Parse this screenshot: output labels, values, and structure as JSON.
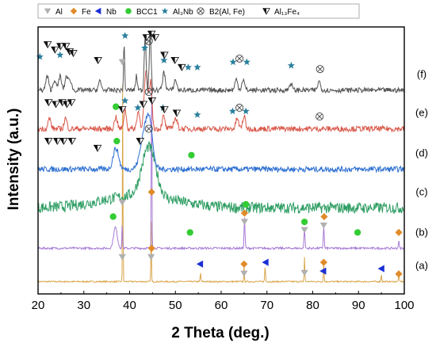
{
  "chart_data": {
    "type": "line",
    "xlabel": "2 Theta (deg.)",
    "ylabel": "Intensity (a.u.)",
    "xlim": [
      20,
      100
    ],
    "x_ticks": [
      20,
      30,
      40,
      50,
      60,
      70,
      80,
      90,
      100
    ],
    "y_ticks": "none",
    "grid": false,
    "legend": {
      "placement": "top",
      "entries": [
        {
          "marker": "gray-down-triangle",
          "label": "Al"
        },
        {
          "marker": "orange-diamond",
          "label": "Fe"
        },
        {
          "marker": "blue-left-triangle",
          "label": "Nb"
        },
        {
          "marker": "green-circle",
          "label": "BCC1"
        },
        {
          "marker": "teal-star",
          "label": "Al₃Nb"
        },
        {
          "marker": "circled-x",
          "label": "B2(Al, Fe)"
        },
        {
          "marker": "black-half-triangle",
          "label": "Al₁₃Fe₄"
        }
      ]
    },
    "colors": {
      "a": "#d9a54a",
      "b": "#a77bd6",
      "c": "#2f9e64",
      "d": "#2c6fd1",
      "e": "#d9584a",
      "f": "#555555",
      "al": "#b0b0b0",
      "fe": "#e08b2a",
      "nb": "#1b2fd6",
      "bcc1": "#33cc33",
      "al3nb": "#2a7f9e",
      "b2": "#444444",
      "al13fe4": "#111111"
    },
    "series": [
      {
        "name": "(a)",
        "baseline": 0.35,
        "noise": 0.02,
        "peaks": [
          [
            38.5,
            0.055,
            6.0
          ],
          [
            44.7,
            0.06,
            1.8
          ],
          [
            55.5,
            0.08,
            0.25
          ],
          [
            65.0,
            0.06,
            0.5
          ],
          [
            69.6,
            0.08,
            0.45
          ],
          [
            78.2,
            0.07,
            0.7
          ],
          [
            82.4,
            0.07,
            0.6
          ],
          [
            95.0,
            0.08,
            0.2
          ],
          [
            98.8,
            0.08,
            0.2
          ]
        ]
      },
      {
        "name": "(b)",
        "baseline": 1.3,
        "noise": 0.03,
        "peaks": [
          [
            36.9,
            0.4,
            0.6
          ],
          [
            38.4,
            0.08,
            0.7
          ],
          [
            44.8,
            0.07,
            5.4
          ],
          [
            65.1,
            0.1,
            0.9
          ],
          [
            78.2,
            0.1,
            0.6
          ],
          [
            82.4,
            0.1,
            0.65
          ],
          [
            98.8,
            0.1,
            0.2
          ]
        ]
      },
      {
        "name": "(c)",
        "baseline": 2.45,
        "noise": 0.16,
        "peaks": [
          [
            42.0,
            8.0,
            0.35
          ],
          [
            44.2,
            1.5,
            1.4
          ]
        ]
      },
      {
        "name": "(d)",
        "baseline": 3.55,
        "noise": 0.08,
        "peaks": [
          [
            37.0,
            0.6,
            0.6
          ],
          [
            43.6,
            1.0,
            1.3
          ],
          [
            44.5,
            0.5,
            0.6
          ]
        ]
      },
      {
        "name": "(e)",
        "baseline": 4.7,
        "noise": 0.08,
        "peaks": [
          [
            22.5,
            0.3,
            0.3
          ],
          [
            26.0,
            0.3,
            0.3
          ],
          [
            37.0,
            0.3,
            0.35
          ],
          [
            39.0,
            0.25,
            0.6
          ],
          [
            41.9,
            0.3,
            0.5
          ],
          [
            43.6,
            0.4,
            1.6
          ],
          [
            44.6,
            0.3,
            1.3
          ],
          [
            47.4,
            0.3,
            0.35
          ],
          [
            50.0,
            0.4,
            0.3
          ],
          [
            63.5,
            0.3,
            0.3
          ],
          [
            65.0,
            0.3,
            0.35
          ]
        ]
      },
      {
        "name": "(f)",
        "baseline": 5.8,
        "noise": 0.07,
        "peaks": [
          [
            22.0,
            0.3,
            0.4
          ],
          [
            23.6,
            0.3,
            0.3
          ],
          [
            24.8,
            0.3,
            0.4
          ],
          [
            26.2,
            0.3,
            0.4
          ],
          [
            27.0,
            0.3,
            0.3
          ],
          [
            33.5,
            0.3,
            0.25
          ],
          [
            38.8,
            0.12,
            1.3
          ],
          [
            41.5,
            0.2,
            0.4
          ],
          [
            43.4,
            0.2,
            1.6
          ],
          [
            44.5,
            0.2,
            1.6
          ],
          [
            47.5,
            0.3,
            0.5
          ],
          [
            50.0,
            0.3,
            0.3
          ],
          [
            63.3,
            0.3,
            0.3
          ],
          [
            64.8,
            0.3,
            0.3
          ],
          [
            75.2,
            0.3,
            0.2
          ],
          [
            81.4,
            0.3,
            0.25
          ]
        ]
      }
    ],
    "markers": [
      {
        "s": "a",
        "p": "al",
        "x": 38.4,
        "y": 1.05
      },
      {
        "s": "a",
        "p": "fe",
        "x": 44.8,
        "y": 1.3
      },
      {
        "s": "a",
        "p": "al",
        "x": 44.7,
        "y": 1.05
      },
      {
        "s": "a",
        "p": "nb",
        "x": 55.4,
        "y": 0.85
      },
      {
        "s": "a",
        "p": "fe",
        "x": 65.0,
        "y": 0.85
      },
      {
        "s": "a",
        "p": "al",
        "x": 65.0,
        "y": 0.58
      },
      {
        "s": "a",
        "p": "nb",
        "x": 69.7,
        "y": 0.9
      },
      {
        "s": "a",
        "p": "al",
        "x": 78.2,
        "y": 0.6
      },
      {
        "s": "a",
        "p": "fe",
        "x": 82.4,
        "y": 0.9
      },
      {
        "s": "a",
        "p": "nb",
        "x": 82.3,
        "y": 0.65
      },
      {
        "s": "a",
        "p": "nb",
        "x": 95.0,
        "y": 0.72
      },
      {
        "s": "a",
        "p": "fe",
        "x": 98.8,
        "y": 0.57
      },
      {
        "s": "b",
        "p": "fe",
        "x": 44.8,
        "y": 2.9
      },
      {
        "s": "b",
        "p": "al",
        "x": 38.4,
        "y": 2.6
      },
      {
        "s": "b",
        "p": "bcc1",
        "x": 36.4,
        "y": 2.2
      },
      {
        "s": "b",
        "p": "bcc1",
        "x": 53.2,
        "y": 1.75
      },
      {
        "s": "b",
        "p": "bcc1",
        "x": 65.4,
        "y": 2.55
      },
      {
        "s": "b",
        "p": "fe",
        "x": 65.1,
        "y": 2.3
      },
      {
        "s": "b",
        "p": "al",
        "x": 65.1,
        "y": 2.05
      },
      {
        "s": "b",
        "p": "bcc1",
        "x": 78.2,
        "y": 2.05
      },
      {
        "s": "b",
        "p": "al",
        "x": 78.2,
        "y": 1.82
      },
      {
        "s": "b",
        "p": "fe",
        "x": 82.5,
        "y": 2.2
      },
      {
        "s": "b",
        "p": "al",
        "x": 82.4,
        "y": 1.95
      },
      {
        "s": "b",
        "p": "bcc1",
        "x": 89.8,
        "y": 1.75
      },
      {
        "s": "b",
        "p": "fe",
        "x": 98.8,
        "y": 1.75
      },
      {
        "s": "d",
        "p": "bcc1",
        "x": 37.2,
        "y": 4.35
      },
      {
        "s": "d",
        "p": "b2",
        "x": 44.2,
        "y": 4.7
      },
      {
        "s": "d",
        "p": "bcc1",
        "x": 53.5,
        "y": 3.95
      },
      {
        "s": "d",
        "p": "al13fe4",
        "x": 22.3,
        "y": 4.35
      },
      {
        "s": "d",
        "p": "al13fe4",
        "x": 24.2,
        "y": 4.35
      },
      {
        "s": "d",
        "p": "al13fe4",
        "x": 25.6,
        "y": 4.35
      },
      {
        "s": "d",
        "p": "al13fe4",
        "x": 27.4,
        "y": 4.35
      },
      {
        "s": "d",
        "p": "al13fe4",
        "x": 33.0,
        "y": 4.15
      },
      {
        "s": "d",
        "p": "al13fe4",
        "x": 42.3,
        "y": 4.35
      },
      {
        "s": "e",
        "p": "b2",
        "x": 44.2,
        "y": 5.75
      },
      {
        "s": "e",
        "p": "al3nb",
        "x": 39.0,
        "y": 5.5
      },
      {
        "s": "e",
        "p": "bcc1",
        "x": 37.0,
        "y": 5.33
      },
      {
        "s": "e",
        "p": "al3nb",
        "x": 41.8,
        "y": 5.3
      },
      {
        "s": "e",
        "p": "al3nb",
        "x": 47.3,
        "y": 5.3
      },
      {
        "s": "e",
        "p": "al3nb",
        "x": 54.8,
        "y": 5.1
      },
      {
        "s": "e",
        "p": "al3nb",
        "x": 62.5,
        "y": 5.2
      },
      {
        "s": "e",
        "p": "b2",
        "x": 64.0,
        "y": 5.3
      },
      {
        "s": "e",
        "p": "al3nb",
        "x": 65.4,
        "y": 5.2
      },
      {
        "s": "e",
        "p": "b2",
        "x": 81.5,
        "y": 5.05
      },
      {
        "s": "e",
        "p": "al13fe4",
        "x": 22.3,
        "y": 5.45
      },
      {
        "s": "e",
        "p": "al13fe4",
        "x": 23.9,
        "y": 5.4
      },
      {
        "s": "e",
        "p": "al13fe4",
        "x": 25.3,
        "y": 5.45
      },
      {
        "s": "e",
        "p": "al13fe4",
        "x": 26.3,
        "y": 5.4
      },
      {
        "s": "e",
        "p": "al13fe4",
        "x": 27.3,
        "y": 5.45
      },
      {
        "s": "e",
        "p": "al13fe4",
        "x": 38.4,
        "y": 5.25
      },
      {
        "s": "e",
        "p": "al13fe4",
        "x": 43.0,
        "y": 5.4
      },
      {
        "s": "e",
        "p": "al13fe4",
        "x": 44.9,
        "y": 5.5
      },
      {
        "s": "e",
        "p": "al13fe4",
        "x": 47.6,
        "y": 5.25
      },
      {
        "s": "e",
        "p": "al13fe4",
        "x": 50.3,
        "y": 5.15
      },
      {
        "s": "f",
        "p": "al3nb",
        "x": 39.0,
        "y": 7.35
      },
      {
        "s": "f",
        "p": "al3nb",
        "x": 20.4,
        "y": 6.75
      },
      {
        "s": "f",
        "p": "al3nb",
        "x": 24.8,
        "y": 6.8
      },
      {
        "s": "f",
        "p": "al3nb",
        "x": 43.3,
        "y": 7.0
      },
      {
        "s": "f",
        "p": "al3nb",
        "x": 47.5,
        "y": 6.65
      },
      {
        "s": "f",
        "p": "al3nb",
        "x": 52.8,
        "y": 6.45
      },
      {
        "s": "f",
        "p": "al3nb",
        "x": 54.8,
        "y": 6.45
      },
      {
        "s": "f",
        "p": "al3nb",
        "x": 62.6,
        "y": 6.6
      },
      {
        "s": "f",
        "p": "al3nb",
        "x": 65.6,
        "y": 6.6
      },
      {
        "s": "f",
        "p": "al3nb",
        "x": 75.3,
        "y": 6.5
      },
      {
        "s": "f",
        "p": "b2",
        "x": 44.2,
        "y": 7.2
      },
      {
        "s": "f",
        "p": "b2",
        "x": 64.0,
        "y": 6.7
      },
      {
        "s": "f",
        "p": "b2",
        "x": 81.6,
        "y": 6.4
      },
      {
        "s": "f",
        "p": "al",
        "x": 38.4,
        "y": 6.6
      },
      {
        "s": "f",
        "p": "al13fe4",
        "x": 22.1,
        "y": 7.1
      },
      {
        "s": "f",
        "p": "al13fe4",
        "x": 23.7,
        "y": 6.95
      },
      {
        "s": "f",
        "p": "al13fe4",
        "x": 24.9,
        "y": 7.05
      },
      {
        "s": "f",
        "p": "al13fe4",
        "x": 26.1,
        "y": 7.05
      },
      {
        "s": "f",
        "p": "al13fe4",
        "x": 26.9,
        "y": 6.9
      },
      {
        "s": "f",
        "p": "al13fe4",
        "x": 27.7,
        "y": 6.85
      },
      {
        "s": "f",
        "p": "al13fe4",
        "x": 33.1,
        "y": 6.65
      },
      {
        "s": "f",
        "p": "al13fe4",
        "x": 43.7,
        "y": 7.3
      },
      {
        "s": "f",
        "p": "al13fe4",
        "x": 44.8,
        "y": 7.4
      },
      {
        "s": "f",
        "p": "al13fe4",
        "x": 45.6,
        "y": 7.3
      },
      {
        "s": "f",
        "p": "al13fe4",
        "x": 47.6,
        "y": 6.8
      },
      {
        "s": "f",
        "p": "al13fe4",
        "x": 49.9,
        "y": 6.65
      },
      {
        "s": "f",
        "p": "al13fe4",
        "x": 51.4,
        "y": 6.45
      }
    ]
  }
}
